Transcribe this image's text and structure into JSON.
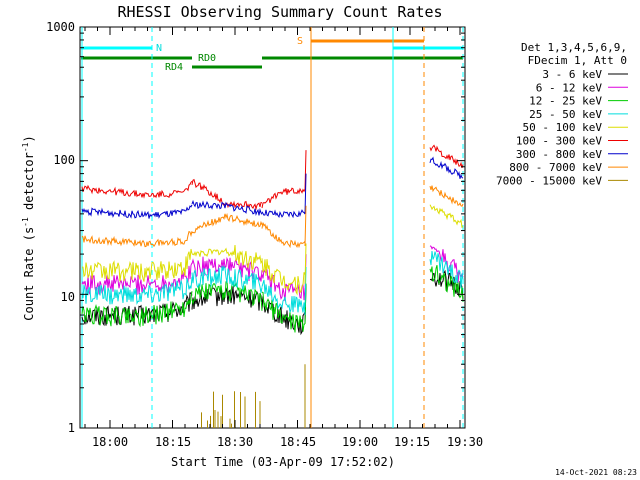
{
  "chart_data": {
    "type": "line",
    "title": "RHESSI Observing Summary Count Rates",
    "xlabel": "Start Time (03-Apr-09 17:52:02)",
    "ylabel_main": "Count Rate (s",
    "ylabel_sup1": "-1",
    "ylabel_mid": " detector",
    "ylabel_sup2": "-1",
    "ylabel_end": ")",
    "x_tick_labels": [
      "18:00",
      "18:15",
      "18:30",
      "18:45",
      "19:00",
      "19:15",
      "19:30"
    ],
    "y_tick_labels": [
      "1",
      "10",
      "100",
      "1000"
    ],
    "ylim": [
      1,
      1000
    ],
    "yscale": "log",
    "legend_header": [
      "Det 1,3,4,5,6,9,",
      "FDecim 1, Att 0"
    ],
    "legend_position": "right",
    "date_stamp": "14-Oct-2021 08:23",
    "series": [
      {
        "name": "3 - 6 keV",
        "color": "#000000",
        "values": [
          7,
          7,
          8,
          9,
          10,
          9,
          7,
          6,
          14,
          11
        ]
      },
      {
        "name": "6 - 12 keV",
        "color": "#dd00dd",
        "values": [
          12,
          12,
          13,
          16,
          17,
          14,
          11,
          10,
          22,
          13
        ]
      },
      {
        "name": "12 - 25 keV",
        "color": "#00cc00",
        "values": [
          7,
          7,
          8,
          10,
          11,
          9,
          7,
          6,
          15,
          10
        ]
      },
      {
        "name": "25 - 50 keV",
        "color": "#00dddd",
        "values": [
          10,
          10,
          11,
          13,
          14,
          12,
          9,
          8,
          20,
          12
        ]
      },
      {
        "name": "50 - 100 keV",
        "color": "#dddd00",
        "values": [
          15,
          15,
          16,
          20,
          21,
          17,
          13,
          12,
          45,
          33
        ]
      },
      {
        "name": "100 - 300 keV",
        "color": "#ee0000",
        "values": [
          62,
          55,
          58,
          70,
          48,
          46,
          58,
          60,
          125,
          90
        ]
      },
      {
        "name": "300 - 800 keV",
        "color": "#0000cc",
        "values": [
          42,
          39,
          41,
          47,
          46,
          41,
          39,
          40,
          100,
          75
        ]
      },
      {
        "name": "800 - 7000 keV",
        "color": "#ff8800",
        "values": [
          26,
          24,
          25,
          30,
          38,
          33,
          25,
          23,
          62,
          45
        ]
      },
      {
        "name": "7000 - 15000 keV",
        "color": "#aa8800",
        "values": [
          1,
          1,
          1,
          1.8,
          1.9,
          1.7,
          1,
          1,
          1,
          1
        ]
      }
    ],
    "flag_labels": {
      "night": "N",
      "saa": "S",
      "rd0": "RD0",
      "rd4": "RD4"
    },
    "flag_colors": {
      "night": "#00ffff",
      "saa": "#ff8800",
      "decim": "#008800"
    }
  }
}
